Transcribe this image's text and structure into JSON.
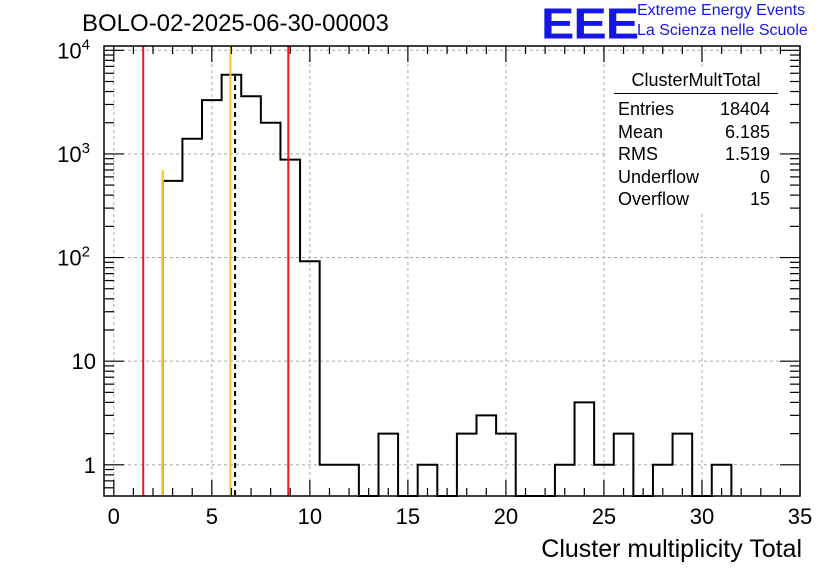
{
  "title": "BOLO-02-2025-06-30-00003",
  "logo": {
    "text": "EEE",
    "line1": "Extreme Energy Events",
    "line2": "La Scienza nelle Scuole",
    "color": "#1515e8"
  },
  "stats_box": {
    "title": "ClusterMultTotal",
    "rows": [
      {
        "label": "Entries",
        "value": "18404"
      },
      {
        "label": "Mean",
        "value": "6.185"
      },
      {
        "label": "RMS",
        "value": "1.519"
      },
      {
        "label": "Underflow",
        "value": "0"
      },
      {
        "label": "Overflow",
        "value": "15"
      }
    ]
  },
  "chart_data": {
    "type": "histogram",
    "title": "BOLO-02-2025-06-30-00003",
    "xlabel": "Cluster multiplicity Total",
    "ylabel": "",
    "xlim": [
      -0.5,
      35
    ],
    "ylim": [
      0.5,
      11000
    ],
    "yscale": "log",
    "grid": true,
    "x_ticks": [
      "0",
      "5",
      "10",
      "15",
      "20",
      "25",
      "30",
      "35"
    ],
    "y_ticks": [
      "1",
      "10",
      "10^2",
      "10^3",
      "10^4"
    ],
    "bin_edges_start": 2.5,
    "bin_width": 1,
    "bin_counts": [
      550,
      1400,
      3300,
      5800,
      3600,
      2000,
      880,
      92,
      1,
      1,
      0,
      2,
      0,
      1,
      0,
      2,
      3,
      2,
      0,
      0,
      1,
      4,
      1,
      2,
      0,
      1,
      2,
      0,
      1
    ],
    "vertical_lines": [
      {
        "x": 1.5,
        "color": "#e41a1c",
        "style": "solid"
      },
      {
        "x": 2.5,
        "color": "#f5c518",
        "style": "solid"
      },
      {
        "x": 5.95,
        "color": "#f5c518",
        "style": "solid"
      },
      {
        "x": 6.185,
        "color": "#000000",
        "style": "dashed"
      },
      {
        "x": 8.9,
        "color": "#e41a1c",
        "style": "solid"
      }
    ]
  }
}
